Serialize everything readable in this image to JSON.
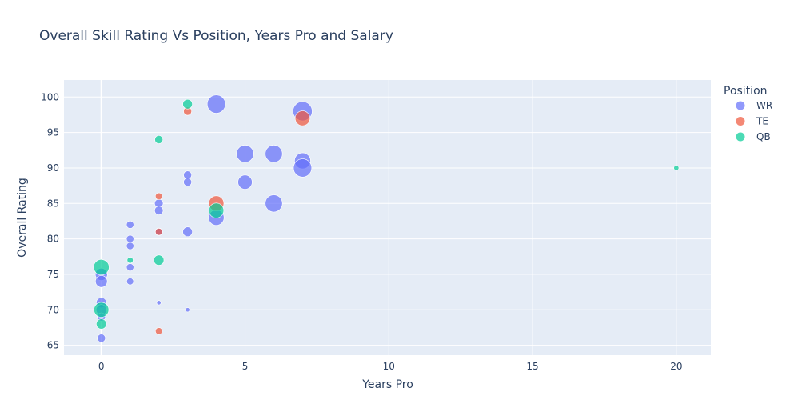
{
  "chart_data": {
    "type": "scatter",
    "title": "Overall Skill Rating Vs Position, Years Pro and Salary",
    "xlabel": "Years Pro",
    "ylabel": "Overall Rating",
    "xlim": [
      -1.3,
      21.2
    ],
    "ylim": [
      63.6,
      102.4
    ],
    "xticks": [
      0,
      5,
      10,
      15,
      20
    ],
    "yticks": [
      65,
      70,
      75,
      80,
      85,
      90,
      95,
      100
    ],
    "grid": true,
    "legend": {
      "title": "Position",
      "placement": "right"
    },
    "series": [
      {
        "name": "WR",
        "color": "#636efa",
        "points": [
          {
            "x": 4,
            "y": 99,
            "size": 0.9
          },
          {
            "x": 7,
            "y": 98,
            "size": 1.0
          },
          {
            "x": 5,
            "y": 92,
            "size": 0.8
          },
          {
            "x": 6,
            "y": 92,
            "size": 0.8
          },
          {
            "x": 7,
            "y": 91,
            "size": 0.7
          },
          {
            "x": 7,
            "y": 90,
            "size": 0.9
          },
          {
            "x": 3,
            "y": 89,
            "size": 0.18
          },
          {
            "x": 3,
            "y": 88,
            "size": 0.18
          },
          {
            "x": 5,
            "y": 88,
            "size": 0.55
          },
          {
            "x": 6,
            "y": 85,
            "size": 0.8
          },
          {
            "x": 2,
            "y": 85,
            "size": 0.2
          },
          {
            "x": 2,
            "y": 84,
            "size": 0.2
          },
          {
            "x": 4,
            "y": 83,
            "size": 0.65
          },
          {
            "x": 1,
            "y": 82,
            "size": 0.15
          },
          {
            "x": 3,
            "y": 81,
            "size": 0.25
          },
          {
            "x": 2,
            "y": 81,
            "size": 0.15
          },
          {
            "x": 1,
            "y": 80,
            "size": 0.15
          },
          {
            "x": 1,
            "y": 79,
            "size": 0.15
          },
          {
            "x": 1,
            "y": 76,
            "size": 0.15
          },
          {
            "x": 0,
            "y": 75,
            "size": 0.4
          },
          {
            "x": 0,
            "y": 74,
            "size": 0.38
          },
          {
            "x": 1,
            "y": 74,
            "size": 0.13
          },
          {
            "x": 0,
            "y": 71,
            "size": 0.28
          },
          {
            "x": 2,
            "y": 71,
            "size": 0.05
          },
          {
            "x": 0,
            "y": 70,
            "size": 0.3
          },
          {
            "x": 3,
            "y": 70,
            "size": 0.05
          },
          {
            "x": 0,
            "y": 69,
            "size": 0.18
          },
          {
            "x": 0,
            "y": 66,
            "size": 0.18
          }
        ]
      },
      {
        "name": "TE",
        "color": "#ef553b",
        "points": [
          {
            "x": 3,
            "y": 98,
            "size": 0.18
          },
          {
            "x": 7,
            "y": 97,
            "size": 0.6
          },
          {
            "x": 2,
            "y": 86,
            "size": 0.13
          },
          {
            "x": 4,
            "y": 85,
            "size": 0.62
          },
          {
            "x": 2,
            "y": 81,
            "size": 0.13
          },
          {
            "x": 2,
            "y": 67,
            "size": 0.13
          }
        ]
      },
      {
        "name": "QB",
        "color": "#00cc96",
        "points": [
          {
            "x": 3,
            "y": 99,
            "size": 0.25
          },
          {
            "x": 2,
            "y": 94,
            "size": 0.18
          },
          {
            "x": 20,
            "y": 90,
            "size": 0.07
          },
          {
            "x": 4,
            "y": 84,
            "size": 0.6
          },
          {
            "x": 1,
            "y": 77,
            "size": 0.1
          },
          {
            "x": 2,
            "y": 77,
            "size": 0.28
          },
          {
            "x": 0,
            "y": 76,
            "size": 0.65
          },
          {
            "x": 0,
            "y": 70,
            "size": 0.6
          },
          {
            "x": 0,
            "y": 68,
            "size": 0.28
          }
        ]
      }
    ]
  }
}
